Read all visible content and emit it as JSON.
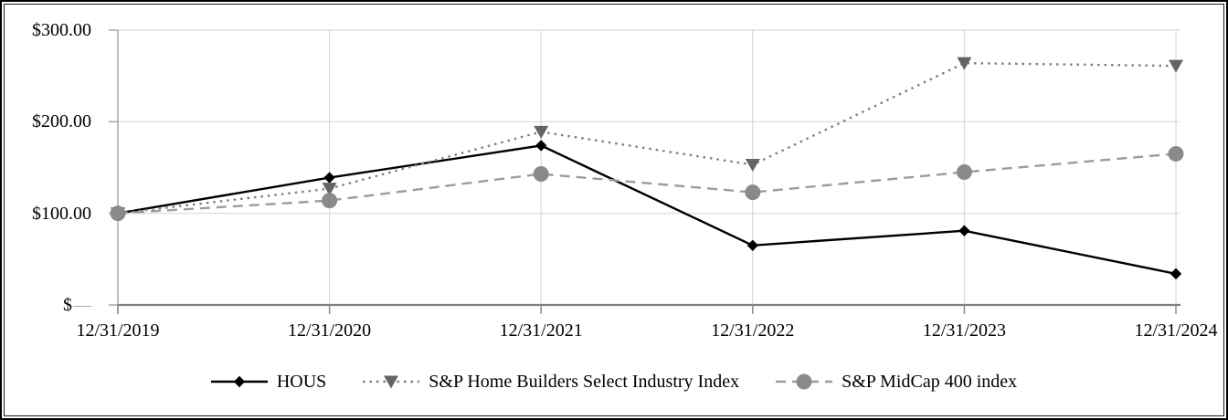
{
  "chart_data": {
    "type": "line",
    "title": "",
    "xlabel": "",
    "ylabel": "",
    "x_tick_labels": [
      "12/31/2019",
      "12/31/2020",
      "12/31/2021",
      "12/31/2022",
      "12/31/2023",
      "12/31/2024"
    ],
    "y_ticks": [
      {
        "value": 300,
        "label": "$300.00"
      },
      {
        "value": 200,
        "label": "$200.00"
      },
      {
        "value": 100,
        "label": "$100.00"
      },
      {
        "value": 0,
        "label": "$",
        "dash": "—"
      }
    ],
    "y_axis": {
      "min": 0,
      "max": 300,
      "gridlines": [
        100,
        200,
        300
      ]
    },
    "series": [
      {
        "id": "hous",
        "name": "HOUS",
        "line_style": "solid",
        "line_color": "#000000",
        "marker": "diamond",
        "marker_color": "#000000",
        "values": [
          100,
          139,
          174,
          65,
          81,
          34
        ]
      },
      {
        "id": "sp-home-builders",
        "name": "S&P Home Builders Select Industry Index",
        "line_style": "dotted",
        "line_color": "#7f7f7f",
        "marker": "triangle-down",
        "marker_color": "#646464",
        "values": [
          100,
          127,
          189,
          153,
          264,
          261
        ]
      },
      {
        "id": "sp-midcap-400",
        "name": "S&P MidCap 400 index",
        "line_style": "dashed",
        "line_color": "#9c9c9c",
        "marker": "circle",
        "marker_color": "#8a8a8a",
        "values": [
          100,
          114,
          143,
          123,
          145,
          165
        ]
      }
    ],
    "style": {
      "grid_color": "#d9d9d9",
      "x_axis_color": "#7f7f7f",
      "y_axis_color": "#a6a6a6",
      "tick_color": "#8c8c8c",
      "background": "#ffffff",
      "frame_color": "#000000"
    },
    "legend_position": "bottom"
  }
}
